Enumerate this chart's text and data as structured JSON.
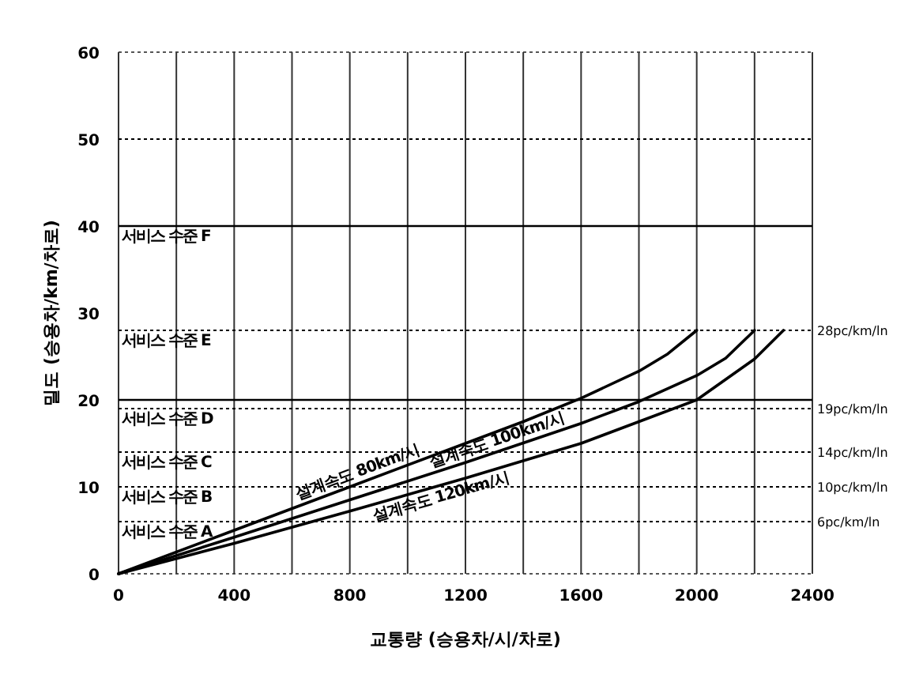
{
  "chart_data": {
    "type": "line",
    "xlabel": "교통량 (승용차/시/차로)",
    "ylabel": "밀도 (승용차/km/차로)",
    "xlim": [
      0,
      2400
    ],
    "ylim": [
      0,
      60
    ],
    "xticks": [
      0,
      {
        "value": 200,
        "label": null
      },
      400,
      {
        "value": 600,
        "label": null
      },
      800,
      {
        "value": 1000,
        "label": null
      },
      1200,
      {
        "value": 1400,
        "label": null
      },
      1600,
      {
        "value": 1800,
        "label": null
      },
      2000,
      {
        "value": 2200,
        "label": null
      },
      2400
    ],
    "yticks": [
      0,
      10,
      20,
      30,
      40,
      50,
      60
    ],
    "grid": "x",
    "line_style": "solid",
    "marker": "none",
    "series": [
      {
        "name": "설계속도 80km/시",
        "color": "#000000",
        "x": [
          0,
          400,
          800,
          1200,
          1400,
          1600,
          1800,
          1900,
          2000
        ],
        "values": [
          0,
          5,
          10,
          15,
          17.5,
          20.2,
          23.3,
          25.3,
          28
        ]
      },
      {
        "name": "설계속도 100km/시",
        "color": "#000000",
        "x": [
          0,
          400,
          800,
          1200,
          1600,
          1800,
          2000,
          2100,
          2200
        ],
        "values": [
          0,
          4.2,
          8.5,
          12.8,
          17.3,
          19.8,
          22.8,
          24.8,
          28
        ]
      },
      {
        "name": "설계속도 120km/시",
        "color": "#000000",
        "x": [
          0,
          400,
          800,
          1200,
          1600,
          2000,
          2200,
          2300
        ],
        "values": [
          0,
          3.5,
          7.2,
          11,
          15,
          20,
          24.7,
          28
        ]
      }
    ],
    "ref_lines": [
      {
        "axis": "y",
        "value": 6,
        "label": "6pc/km/ln",
        "line_style": "dotted"
      },
      {
        "axis": "y",
        "value": 10,
        "label": "10pc/km/ln",
        "line_style": "dotted"
      },
      {
        "axis": "y",
        "value": 14,
        "label": "14pc/km/ln",
        "line_style": "dotted"
      },
      {
        "axis": "y",
        "value": 19,
        "label": "19pc/km/ln",
        "line_style": "dotted"
      },
      {
        "axis": "y",
        "value": 28,
        "label": "28pc/km/ln",
        "line_style": "dotted"
      },
      {
        "axis": "y",
        "value": 20,
        "line_style": "solid"
      },
      {
        "axis": "y",
        "value": 40,
        "line_style": "solid"
      },
      {
        "axis": "y",
        "value": 50,
        "line_style": "dotted"
      }
    ],
    "annotations": [
      "서비스 수준 F",
      "서비스 수준 E",
      "서비스 수준 D",
      "서비스 수준 C",
      "서비스 수준 B",
      "서비스 수준 A"
    ]
  }
}
